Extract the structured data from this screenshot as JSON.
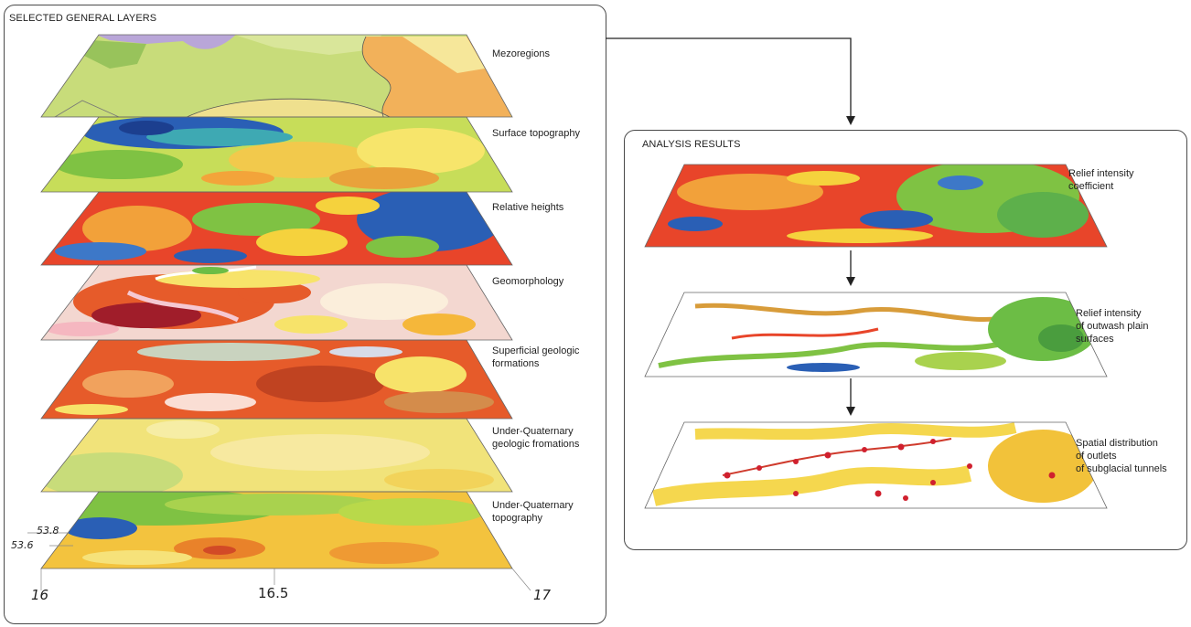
{
  "left_panel": {
    "title": "SELECTED GENERAL LAYERS",
    "layers": [
      {
        "lines": [
          "Mezoregions"
        ]
      },
      {
        "lines": [
          "Surface topography"
        ]
      },
      {
        "lines": [
          "Relative heights"
        ]
      },
      {
        "lines": [
          "Geomorphology"
        ]
      },
      {
        "lines": [
          "Superficial geologic",
          "formations"
        ]
      },
      {
        "lines": [
          "Under-Quaternary",
          "geologic fromations"
        ]
      },
      {
        "lines": [
          "Under-Quaternary",
          "topography"
        ]
      }
    ],
    "axes": {
      "lat_labels": [
        "53.8",
        "53.6"
      ],
      "lon_labels": [
        "16",
        "16.5",
        "17"
      ]
    }
  },
  "right_panel": {
    "title": "ANALYSIS RESULTS",
    "layers": [
      {
        "lines": [
          "Relief intensity",
          "coefficient"
        ]
      },
      {
        "lines": [
          "Relief intensity",
          "of outwash plain",
          "surfaces"
        ]
      },
      {
        "lines": [
          "Spatial distribution",
          "of outlets",
          "of subglacial tunnels"
        ]
      }
    ]
  },
  "colors": {
    "frame": "#4a4a4a",
    "arrow": "#222222",
    "mezo_green": "#c8dc7a",
    "mezo_purple": "#b9a6d8",
    "mezo_orange": "#f2b15a",
    "mezo_yellow": "#f6e79a",
    "relief_red": "#e8452a",
    "relief_green": "#7fc243",
    "relief_blue": "#2a5fb5",
    "outlet_red": "#d0202e",
    "sand_yellow": "#f5d74e"
  }
}
